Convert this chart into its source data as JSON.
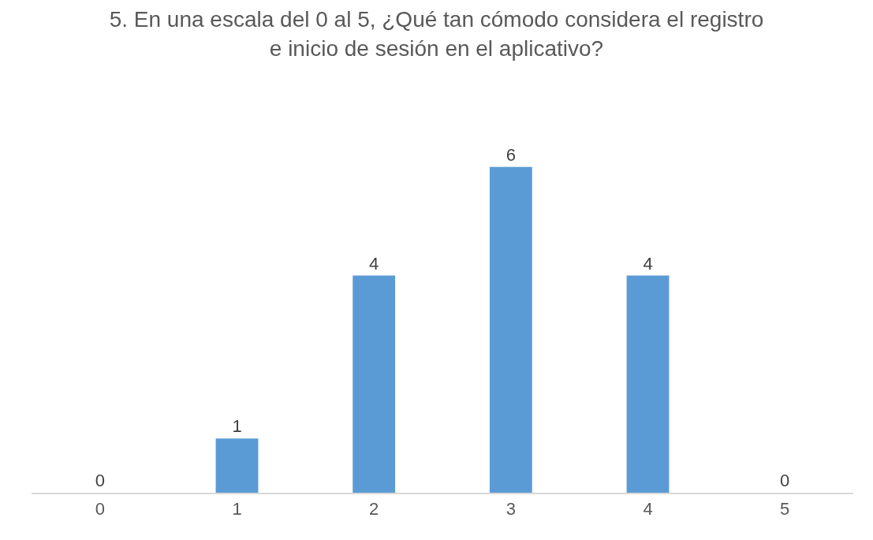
{
  "chart_data": {
    "type": "bar",
    "title": "5. En una escala del 0 al 5, ¿Qué tan cómodo considera el registro e inicio de sesión en el aplicativo?",
    "categories": [
      "0",
      "1",
      "2",
      "3",
      "4",
      "5"
    ],
    "values": [
      0,
      1,
      4,
      6,
      4,
      0
    ],
    "color": "#5b9bd5",
    "data_labels": true,
    "tick_labels": "x"
  }
}
